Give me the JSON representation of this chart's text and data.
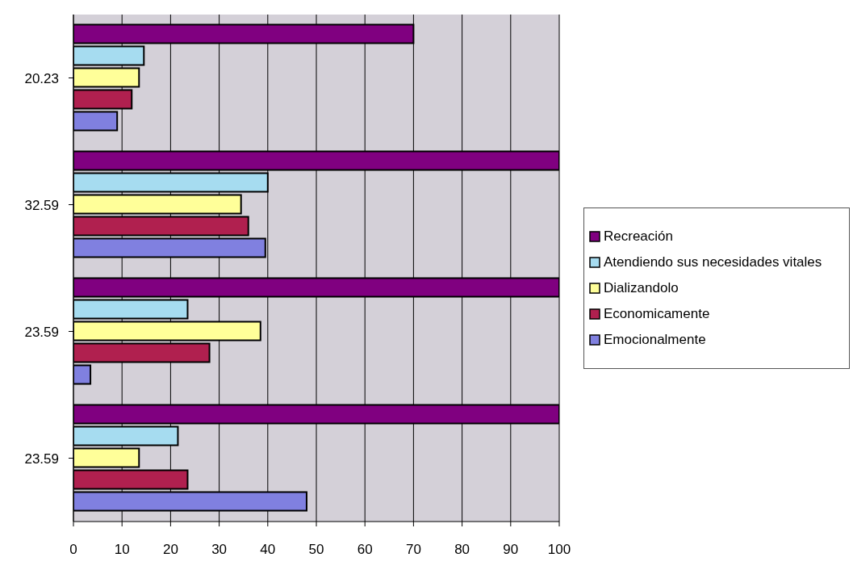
{
  "chart_data": {
    "type": "bar",
    "orientation": "horizontal",
    "categories": [
      "20.23",
      "32.59",
      "23.59",
      "23.59"
    ],
    "series": [
      {
        "name": "Recreación",
        "color": "#800080",
        "values": [
          70,
          100,
          100,
          100
        ]
      },
      {
        "name": "Atendiendo sus necesidades vitales",
        "color": "#a6dcf0",
        "values": [
          14.5,
          40,
          23.5,
          21.5
        ]
      },
      {
        "name": "Dializandolo",
        "color": "#ffff99",
        "values": [
          13.5,
          34.5,
          38.5,
          13.5
        ]
      },
      {
        "name": "Economicamente",
        "color": "#b0204f",
        "values": [
          12,
          36,
          28,
          23.5
        ]
      },
      {
        "name": "Emocionalmente",
        "color": "#8080e0",
        "values": [
          9,
          39.5,
          3.5,
          48
        ]
      }
    ],
    "xlim": [
      0,
      100
    ],
    "xticks": [
      0,
      10,
      20,
      30,
      40,
      50,
      60,
      70,
      80,
      90,
      100
    ],
    "grid": "x",
    "legend": "right"
  }
}
